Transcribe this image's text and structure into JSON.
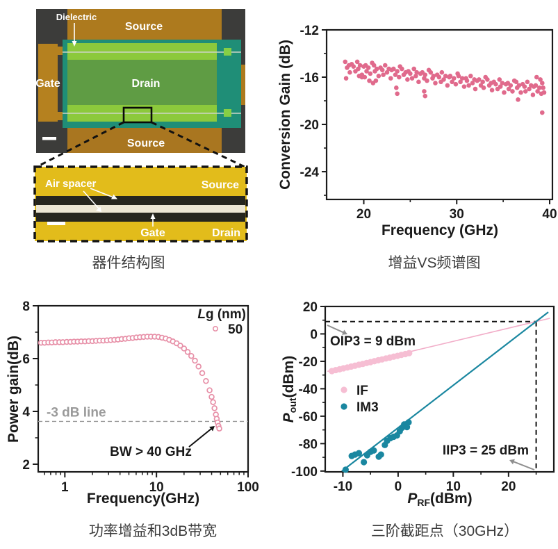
{
  "captions": {
    "device": "器件结构图",
    "gain_vs_freq": "增益VS频谱图",
    "power_gain": "功率增益和3dB带宽",
    "ip3": "三阶截距点（30GHz）"
  },
  "device_panel": {
    "labels": {
      "dielectric": "Dielectric",
      "source_top": "Source",
      "gate": "Gate",
      "drain": "Drain",
      "source_bottom": "Source"
    },
    "inset_labels": {
      "air_spacer": "Air spacer",
      "source": "Source",
      "gate": "Gate",
      "drain": "Drain"
    },
    "colors": {
      "background": "#3c3c3a",
      "metal_orange": "#ad7a1e",
      "gate_orange": "#b5811f",
      "overlay_teal": "#1f8e77",
      "stripe_lime": "#8cc93c",
      "drain_olive": "#5f9c44",
      "pad_green": "#86cf45",
      "inset_yellow": "#e2bc1b",
      "inset_dark": "#26261e",
      "inset_gate_stripe": "#ece6d3"
    }
  },
  "chart_data": [
    {
      "id": "conversion_gain",
      "type": "scatter",
      "xlabel": "Frequency (GHz)",
      "ylabel": "Conversion Gain (dB)",
      "xlim": [
        16,
        40.3
      ],
      "ylim": [
        -26.35,
        -12
      ],
      "xticks": [
        20,
        30,
        40
      ],
      "xminor": [
        25,
        35
      ],
      "yticks": [
        -12,
        -16,
        -20,
        -24
      ],
      "yminor": [
        -14,
        -18,
        -22,
        -26
      ],
      "marker_color": "#e06a8c",
      "points": [
        [
          18.0,
          -14.7
        ],
        [
          18.2,
          -15.2
        ],
        [
          18.4,
          -15.0
        ],
        [
          18.5,
          -15.6
        ],
        [
          18.7,
          -14.9
        ],
        [
          18.9,
          -15.1
        ],
        [
          19.1,
          -15.5
        ],
        [
          19.3,
          -14.7
        ],
        [
          19.4,
          -15.3
        ],
        [
          19.6,
          -15.0
        ],
        [
          19.8,
          -15.8
        ],
        [
          20.0,
          -15.1
        ],
        [
          20.2,
          -15.0
        ],
        [
          20.3,
          -15.5
        ],
        [
          20.5,
          -15.2
        ],
        [
          20.7,
          -15.7
        ],
        [
          20.9,
          -14.8
        ],
        [
          21.1,
          -15.0
        ],
        [
          21.2,
          -15.5
        ],
        [
          21.4,
          -15.3
        ],
        [
          21.6,
          -15.9
        ],
        [
          21.8,
          -15.2
        ],
        [
          22.0,
          -15.4
        ],
        [
          22.1,
          -15.8
        ],
        [
          22.3,
          -15.0
        ],
        [
          22.5,
          -15.6
        ],
        [
          22.7,
          -15.3
        ],
        [
          22.9,
          -16.1
        ],
        [
          23.0,
          -15.4
        ],
        [
          23.2,
          -15.3
        ],
        [
          23.4,
          -15.8
        ],
        [
          23.6,
          -15.5
        ],
        [
          23.8,
          -16.0
        ],
        [
          23.9,
          -15.1
        ],
        [
          24.1,
          -15.3
        ],
        [
          24.3,
          -15.8
        ],
        [
          24.5,
          -15.6
        ],
        [
          24.7,
          -16.2
        ],
        [
          24.8,
          -15.5
        ],
        [
          25.0,
          -15.7
        ],
        [
          25.2,
          -16.1
        ],
        [
          25.4,
          -15.3
        ],
        [
          25.6,
          -15.9
        ],
        [
          25.7,
          -15.6
        ],
        [
          25.9,
          -16.4
        ],
        [
          26.1,
          -15.7
        ],
        [
          26.3,
          -15.6
        ],
        [
          26.5,
          -16.1
        ],
        [
          26.6,
          -15.8
        ],
        [
          26.8,
          -16.3
        ],
        [
          27.0,
          -15.4
        ],
        [
          27.2,
          -15.6
        ],
        [
          27.4,
          -16.1
        ],
        [
          27.5,
          -15.9
        ],
        [
          27.7,
          -16.5
        ],
        [
          27.9,
          -15.8
        ],
        [
          28.1,
          -16.0
        ],
        [
          28.3,
          -16.4
        ],
        [
          28.4,
          -15.6
        ],
        [
          28.6,
          -16.2
        ],
        [
          28.8,
          -15.9
        ],
        [
          29.0,
          -16.7
        ],
        [
          29.2,
          -16.0
        ],
        [
          29.3,
          -15.9
        ],
        [
          29.5,
          -16.4
        ],
        [
          29.7,
          -16.1
        ],
        [
          29.9,
          -16.6
        ],
        [
          30.1,
          -15.7
        ],
        [
          30.2,
          -15.9
        ],
        [
          30.4,
          -16.4
        ],
        [
          30.6,
          -16.1
        ],
        [
          30.8,
          -16.8
        ],
        [
          31.0,
          -16.1
        ],
        [
          31.1,
          -16.3
        ],
        [
          31.3,
          -16.7
        ],
        [
          31.5,
          -15.9
        ],
        [
          31.7,
          -16.5
        ],
        [
          31.9,
          -16.2
        ],
        [
          32.0,
          -17.0
        ],
        [
          32.2,
          -16.3
        ],
        [
          32.4,
          -16.2
        ],
        [
          32.6,
          -16.7
        ],
        [
          32.8,
          -16.4
        ],
        [
          32.9,
          -16.9
        ],
        [
          33.1,
          -16.0
        ],
        [
          33.3,
          -16.2
        ],
        [
          33.5,
          -16.7
        ],
        [
          33.7,
          -16.5
        ],
        [
          33.8,
          -17.1
        ],
        [
          34.0,
          -16.4
        ],
        [
          34.2,
          -16.6
        ],
        [
          34.4,
          -17.0
        ],
        [
          34.6,
          -16.2
        ],
        [
          34.7,
          -16.8
        ],
        [
          34.9,
          -16.5
        ],
        [
          35.1,
          -17.3
        ],
        [
          35.3,
          -16.6
        ],
        [
          35.5,
          -16.5
        ],
        [
          35.6,
          -17.0
        ],
        [
          35.8,
          -16.7
        ],
        [
          36.0,
          -17.2
        ],
        [
          36.2,
          -16.3
        ],
        [
          36.4,
          -16.4
        ],
        [
          36.5,
          -16.9
        ],
        [
          36.7,
          -16.7
        ],
        [
          36.9,
          -17.3
        ],
        [
          37.1,
          -16.6
        ],
        [
          37.3,
          -16.8
        ],
        [
          37.4,
          -17.2
        ],
        [
          37.6,
          -16.4
        ],
        [
          37.8,
          -17.0
        ],
        [
          38.0,
          -16.7
        ],
        [
          38.2,
          -17.5
        ],
        [
          38.3,
          -16.8
        ],
        [
          38.5,
          -16.7
        ],
        [
          38.7,
          -17.2
        ],
        [
          38.9,
          -16.9
        ],
        [
          39.1,
          -17.4
        ],
        [
          39.2,
          -16.5
        ],
        [
          18.1,
          -16.1
        ],
        [
          19.5,
          -15.9
        ],
        [
          19.8,
          -16.0
        ],
        [
          20.1,
          -16.0
        ],
        [
          20.6,
          -16.3
        ],
        [
          21.0,
          -16.5
        ],
        [
          21.3,
          -16.3
        ],
        [
          23.5,
          -16.9
        ],
        [
          23.6,
          -17.4
        ],
        [
          26.5,
          -17.2
        ],
        [
          26.6,
          -17.6
        ],
        [
          36.6,
          -17.9
        ],
        [
          38.6,
          -16.0
        ],
        [
          39.0,
          -16.2
        ],
        [
          39.3,
          -16.9
        ],
        [
          39.4,
          -17.3
        ],
        [
          39.2,
          -19.0
        ]
      ]
    },
    {
      "id": "power_gain",
      "type": "scatter_line",
      "xscale": "log",
      "xlabel": "Frequency(GHz)",
      "ylabel": "Power gain(dB)",
      "xlim": [
        0.512,
        100
      ],
      "ylim": [
        1.71,
        8
      ],
      "xticks": [
        1,
        10,
        100
      ],
      "yticks": [
        2,
        4,
        6,
        8
      ],
      "yminor": [
        3,
        5,
        7
      ],
      "marker": "open-circle",
      "marker_color": "#e78fa7",
      "dashed_line": {
        "y": 3.62,
        "label": "-3 dB line",
        "color": "#9a9a9a"
      },
      "legend": {
        "title_italic": "L",
        "title_rest": "g (nm)",
        "value": "50"
      },
      "annotation": {
        "text": "BW > 40 GHz"
      },
      "points": [
        [
          0.55,
          6.6
        ],
        [
          0.6,
          6.6
        ],
        [
          0.66,
          6.61
        ],
        [
          0.72,
          6.61
        ],
        [
          0.79,
          6.62
        ],
        [
          0.87,
          6.62
        ],
        [
          0.95,
          6.62
        ],
        [
          1.05,
          6.63
        ],
        [
          1.15,
          6.63
        ],
        [
          1.26,
          6.64
        ],
        [
          1.38,
          6.64
        ],
        [
          1.51,
          6.65
        ],
        [
          1.66,
          6.65
        ],
        [
          1.82,
          6.66
        ],
        [
          2.0,
          6.66
        ],
        [
          2.19,
          6.67
        ],
        [
          2.4,
          6.68
        ],
        [
          2.63,
          6.68
        ],
        [
          2.88,
          6.69
        ],
        [
          3.16,
          6.7
        ],
        [
          3.47,
          6.71
        ],
        [
          3.8,
          6.72
        ],
        [
          4.17,
          6.74
        ],
        [
          4.57,
          6.75
        ],
        [
          5.01,
          6.77
        ],
        [
          5.5,
          6.78
        ],
        [
          6.03,
          6.8
        ],
        [
          6.61,
          6.81
        ],
        [
          7.24,
          6.82
        ],
        [
          7.94,
          6.83
        ],
        [
          8.71,
          6.83
        ],
        [
          9.55,
          6.83
        ],
        [
          10.5,
          6.82
        ],
        [
          11.5,
          6.79
        ],
        [
          12.6,
          6.76
        ],
        [
          13.8,
          6.71
        ],
        [
          15.1,
          6.65
        ],
        [
          16.6,
          6.58
        ],
        [
          18.2,
          6.49
        ],
        [
          20.0,
          6.38
        ],
        [
          21.9,
          6.25
        ],
        [
          24.0,
          6.1
        ],
        [
          26.3,
          5.92
        ],
        [
          28.8,
          5.7
        ],
        [
          31.6,
          5.45
        ],
        [
          34.7,
          5.15
        ],
        [
          38.0,
          4.8
        ],
        [
          40.0,
          4.55
        ],
        [
          41.5,
          4.35
        ],
        [
          43.0,
          4.12
        ],
        [
          44.5,
          3.88
        ],
        [
          45.5,
          3.72
        ],
        [
          46.5,
          3.58
        ],
        [
          47.5,
          3.45
        ],
        [
          48.5,
          3.35
        ]
      ]
    },
    {
      "id": "ip3",
      "type": "scatter_line",
      "xlabel": {
        "sym": "P",
        "sub": "RF",
        "rest": "(dBm)"
      },
      "ylabel": {
        "sym": "P",
        "sub": "out",
        "rest": "(dBm)"
      },
      "xlim": [
        -13.2,
        28.2
      ],
      "ylim": [
        -100.6,
        20
      ],
      "xticks": [
        -10,
        0,
        10,
        20
      ],
      "xminor": [
        -5,
        5,
        15,
        25
      ],
      "yticks": [
        20,
        0,
        -20,
        -40,
        -60,
        -80,
        -100
      ],
      "yminor": [
        10,
        -10,
        -30,
        -50,
        -70,
        -90
      ],
      "dashed": {
        "h_y": 9,
        "v_x": 25,
        "color": "#111111"
      },
      "series": [
        {
          "name": "IF",
          "dot_color": "#f6bed3",
          "line_color": "#f2aec9",
          "line": [
            [
              -12.8,
              -27.3
            ],
            [
              27.5,
              11.4
            ]
          ],
          "points": [
            [
              -12,
              -27.1
            ],
            [
              -11.3,
              -26.4
            ],
            [
              -10.6,
              -25.8
            ],
            [
              -9.9,
              -25.1
            ],
            [
              -9.2,
              -24.5
            ],
            [
              -8.5,
              -23.8
            ],
            [
              -7.8,
              -23.2
            ],
            [
              -7.1,
              -22.5
            ],
            [
              -6.4,
              -21.9
            ],
            [
              -5.7,
              -21.2
            ],
            [
              -5.0,
              -20.6
            ],
            [
              -4.3,
              -19.9
            ],
            [
              -3.6,
              -19.2
            ],
            [
              -2.9,
              -18.6
            ],
            [
              -2.2,
              -17.9
            ],
            [
              -1.5,
              -17.3
            ],
            [
              -0.8,
              -16.6
            ],
            [
              -0.1,
              -16.0
            ],
            [
              0.6,
              -15.3
            ],
            [
              1.3,
              -14.7
            ],
            [
              2.0,
              -14.0
            ]
          ]
        },
        {
          "name": "IM3",
          "dot_color": "#1a87a0",
          "line_color": "#1a87a0",
          "line": [
            [
              -10.2,
              -100.1
            ],
            [
              27.2,
              15.9
            ]
          ],
          "points": [
            [
              -9.5,
              -99
            ],
            [
              -8.4,
              -89
            ],
            [
              -7.8,
              -88
            ],
            [
              -7.1,
              -87
            ],
            [
              -6.2,
              -93.5
            ],
            [
              -5.6,
              -88.5
            ],
            [
              -5.0,
              -86
            ],
            [
              -4.4,
              -85
            ],
            [
              -3.5,
              -89.5
            ],
            [
              -3.1,
              -88
            ],
            [
              -2.4,
              -81
            ],
            [
              -2.0,
              -78
            ],
            [
              -1.4,
              -76
            ],
            [
              -0.8,
              -75
            ],
            [
              -0.2,
              -74
            ],
            [
              0.3,
              -71
            ],
            [
              0.7,
              -68.5
            ],
            [
              1.1,
              -66
            ],
            [
              1.6,
              -68
            ],
            [
              1.9,
              -64.5
            ]
          ]
        }
      ],
      "annotations": [
        {
          "id": "oip3",
          "text": "OIP3 = 9 dBm"
        },
        {
          "id": "iip3",
          "text": "IIP3 = 25 dBm"
        }
      ]
    }
  ]
}
